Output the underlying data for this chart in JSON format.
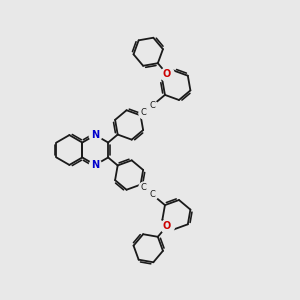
{
  "background_color": "#e8e8e8",
  "bond_color": "#1a1a1a",
  "n_color": "#0000cc",
  "o_color": "#cc0000",
  "line_width": 1.3,
  "figsize": [
    3.0,
    3.0
  ],
  "dpi": 100,
  "r": 0.38,
  "xlim": [
    0,
    10
  ],
  "ylim": [
    0,
    10
  ]
}
